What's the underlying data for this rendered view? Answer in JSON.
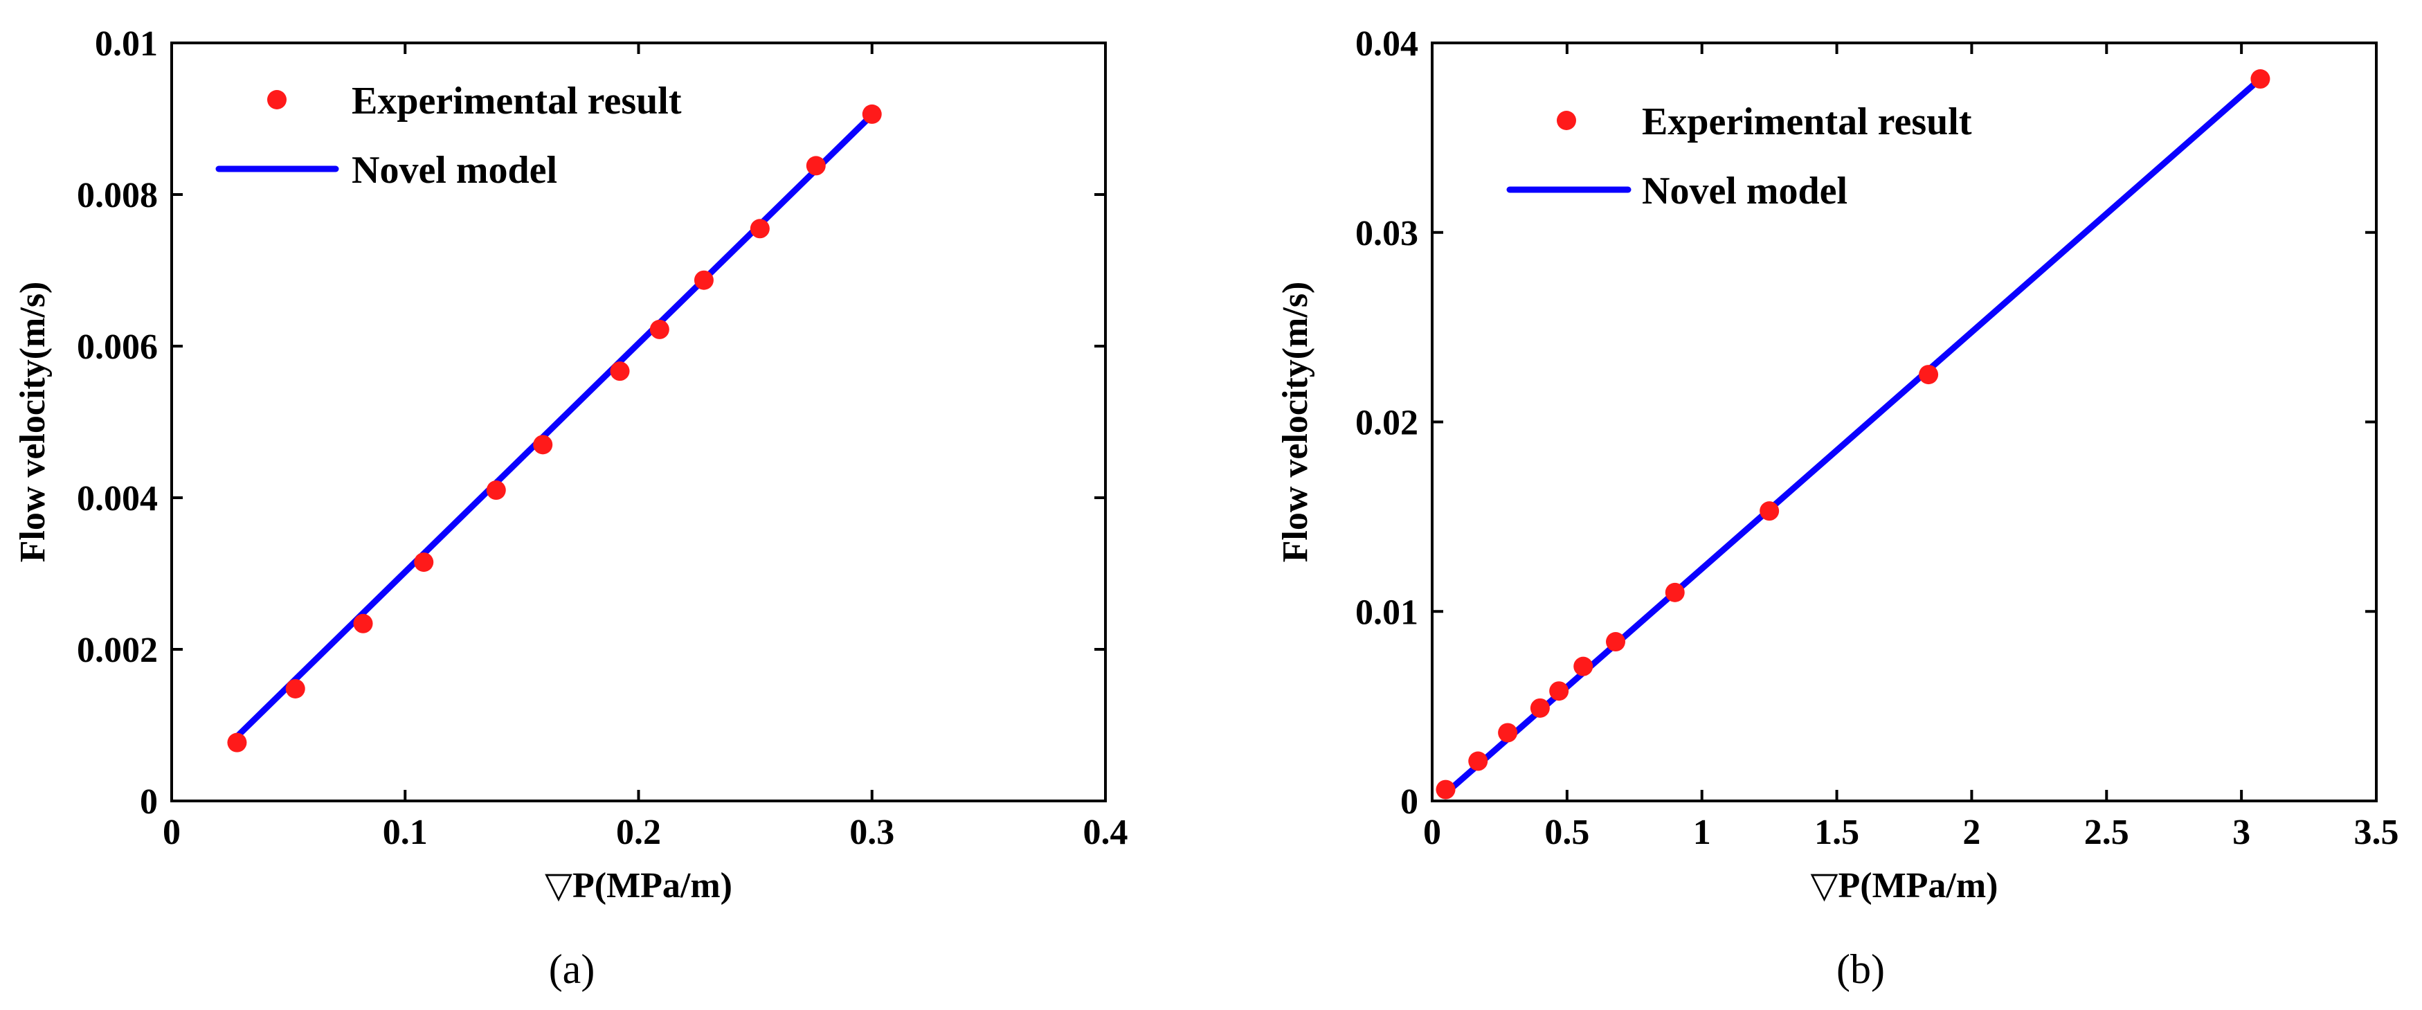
{
  "chart_data": [
    {
      "type": "scatter",
      "panel": "a",
      "caption": "(a)",
      "xlabel": "▽P(MPa/m)",
      "ylabel": "Flow velocity(m/s)",
      "xlim": [
        0,
        0.4
      ],
      "ylim": [
        0,
        0.01
      ],
      "xticks": [
        0,
        0.1,
        0.2,
        0.3,
        0.4
      ],
      "xtick_labels": [
        "0",
        "0.1",
        "0.2",
        "0.3",
        "0.4"
      ],
      "yticks": [
        0,
        0.002,
        0.004,
        0.006,
        0.008,
        0.01
      ],
      "ytick_labels": [
        "0",
        "0.002",
        "0.004",
        "0.006",
        "0.008",
        "0.01"
      ],
      "legend": {
        "position": "top-left",
        "entries": [
          "Experimental result",
          "Novel model"
        ]
      },
      "series": [
        {
          "name": "Experimental result",
          "kind": "marker",
          "color": "#ff1a1a",
          "x": [
            0.028,
            0.053,
            0.082,
            0.108,
            0.139,
            0.159,
            0.192,
            0.209,
            0.228,
            0.252,
            0.276,
            0.3
          ],
          "y": [
            0.00077,
            0.00148,
            0.00234,
            0.00315,
            0.0041,
            0.0047,
            0.00567,
            0.00622,
            0.00687,
            0.00755,
            0.00838,
            0.00906
          ]
        },
        {
          "name": "Novel model",
          "kind": "line",
          "color": "#0a00ff",
          "x": [
            0.028,
            0.3
          ],
          "y": [
            0.00085,
            0.00905
          ]
        }
      ]
    },
    {
      "type": "scatter",
      "panel": "b",
      "caption": "(b)",
      "xlabel": "▽P(MPa/m)",
      "ylabel": "Flow velocity(m/s)",
      "xlim": [
        0,
        3.5
      ],
      "ylim": [
        0,
        0.04
      ],
      "xticks": [
        0,
        0.5,
        1,
        1.5,
        2,
        2.5,
        3,
        3.5
      ],
      "xtick_labels": [
        "0",
        "0.5",
        "1",
        "1.5",
        "2",
        "2.5",
        "3",
        "3.5"
      ],
      "yticks": [
        0,
        0.01,
        0.02,
        0.03,
        0.04
      ],
      "ytick_labels": [
        "0",
        "0.01",
        "0.02",
        "0.03",
        "0.04"
      ],
      "legend": {
        "position": "top-left",
        "entries": [
          "Experimental result",
          "Novel model"
        ]
      },
      "series": [
        {
          "name": "Experimental result",
          "kind": "marker",
          "color": "#ff1a1a",
          "x": [
            0.05,
            0.17,
            0.28,
            0.4,
            0.47,
            0.56,
            0.68,
            0.9,
            1.25,
            1.84,
            3.07
          ],
          "y": [
            0.0006,
            0.0021,
            0.0036,
            0.0049,
            0.0058,
            0.0071,
            0.0084,
            0.011,
            0.0153,
            0.0225,
            0.0381
          ]
        },
        {
          "name": "Novel model",
          "kind": "line",
          "color": "#0a00ff",
          "x": [
            0.05,
            3.07
          ],
          "y": [
            0.0004,
            0.0381
          ]
        }
      ]
    }
  ]
}
